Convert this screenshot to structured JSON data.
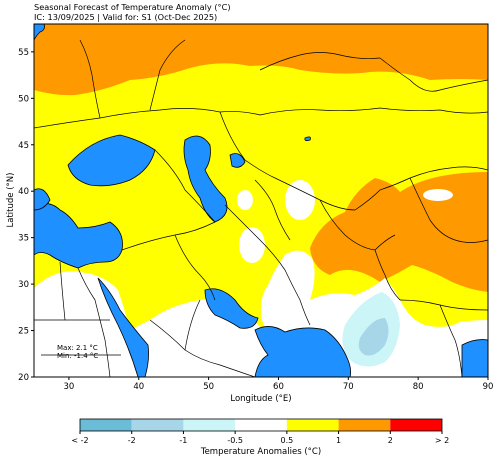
{
  "title": {
    "line1": "Seasonal Forecast of Temperature Anomaly (°C)",
    "line2": "IC: 13/09/2025 | Valid for: S1 (Oct-Dec 2025)"
  },
  "axes": {
    "xlabel": "Longitude (°E)",
    "ylabel": "Latitude (°N)",
    "xlim": [
      25,
      90
    ],
    "ylim": [
      20,
      58
    ],
    "xticks": [
      30,
      40,
      50,
      60,
      70,
      80,
      90
    ],
    "yticks": [
      20,
      25,
      30,
      35,
      40,
      45,
      50,
      55
    ]
  },
  "stats": {
    "max": "Max: 2.1 °C",
    "min": "Min: -1.4 °C"
  },
  "colorbar": {
    "label": "Temperature Anomalies (°C)",
    "ticks": [
      "< -2",
      "-2",
      "-1",
      "-0.5",
      "0.5",
      "1",
      "2",
      "> 2"
    ],
    "bins": [
      {
        "range": "< -2 to -2",
        "color": "#6bbcd6"
      },
      {
        "range": "-2 to -1",
        "color": "#a6d6e8"
      },
      {
        "range": "-1 to -0.5",
        "color": "#ccf5f7"
      },
      {
        "range": "-0.5 to 0.5",
        "color": "#ffffff"
      },
      {
        "range": "0.5 to 1",
        "color": "#ffff00"
      },
      {
        "range": "1 to 2",
        "color": "#ff9900"
      },
      {
        "range": "2 to > 2",
        "color": "#ff0000"
      }
    ]
  },
  "colors": {
    "ocean": "#1e90ff",
    "warm_low": "#ffff00",
    "warm_mid": "#ff9900",
    "neutral": "#ffffff",
    "cool_light": "#ccf5f7",
    "cool_mid": "#a6d6e8",
    "cool_dark": "#6bbcd6"
  }
}
